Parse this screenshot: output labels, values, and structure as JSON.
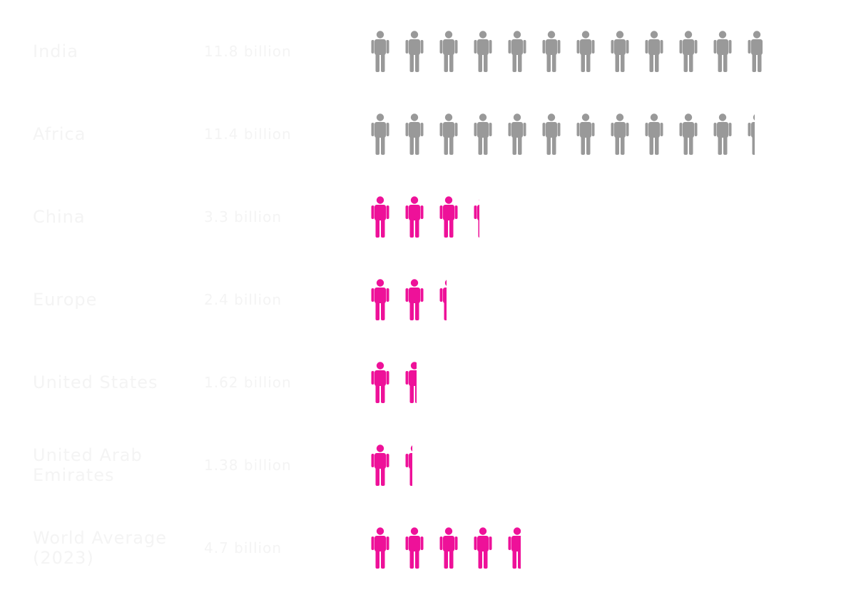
{
  "chart_data": {
    "type": "pictograph",
    "unit_per_icon_billion": 1,
    "colors": {
      "above_average": "#999999",
      "below_average": "#ee1199"
    },
    "rows": [
      {
        "label": "India",
        "value_text": "11.8 billion",
        "value": 11.8,
        "color": "#999999"
      },
      {
        "label": "Africa",
        "value_text": "11.4 billion",
        "value": 11.4,
        "color": "#999999"
      },
      {
        "label": "China",
        "value_text": "3.3 billion",
        "value": 3.3,
        "color": "#ee1199"
      },
      {
        "label": "Europe",
        "value_text": "2.4 billion",
        "value": 2.4,
        "color": "#ee1199"
      },
      {
        "label": "United States",
        "value_text": "1.62 billion",
        "value": 1.62,
        "color": "#ee1199"
      },
      {
        "label": "United Arab Emirates",
        "value_text": "1.38 billion",
        "value": 1.38,
        "color": "#ee1199"
      },
      {
        "label": "World Average (2023)",
        "value_text": "4.7 billion",
        "value": 4.7,
        "color": "#ee1199"
      }
    ]
  }
}
